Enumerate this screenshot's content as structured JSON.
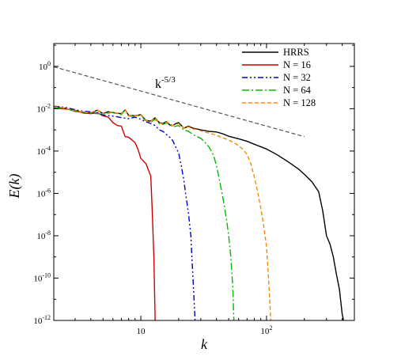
{
  "chart_data": {
    "type": "line",
    "xlabel": "k",
    "ylabel": "E(k)",
    "x_scale": "log",
    "y_scale": "log",
    "xlim": [
      2.03,
      500
    ],
    "ylim": [
      1e-12,
      12
    ],
    "grid": false,
    "legend_position": "top-right",
    "x_ticks": [
      {
        "value": 10,
        "base": "10",
        "exp": ""
      },
      {
        "value": 100,
        "base": "10",
        "exp": "2"
      }
    ],
    "y_ticks": [
      {
        "value": 1,
        "base": "10",
        "exp": "0"
      },
      {
        "value": 0.01,
        "base": "10",
        "exp": "-2"
      },
      {
        "value": 0.0001,
        "base": "10",
        "exp": "-4"
      },
      {
        "value": 1e-06,
        "base": "10",
        "exp": "-6"
      },
      {
        "value": 1e-08,
        "base": "10",
        "exp": "-8"
      },
      {
        "value": 1e-10,
        "base": "10",
        "exp": "-10"
      },
      {
        "value": 1e-12,
        "base": "10",
        "exp": "-12"
      }
    ],
    "reference_line": {
      "label_base": "k",
      "label_exp": "-5/3",
      "color": "#555555",
      "points": [
        [
          2.03,
          0.955
        ],
        [
          200,
          0.00048
        ]
      ]
    },
    "series": [
      {
        "name": "HRRS",
        "color": "#000000",
        "dash": "",
        "points": [
          [
            2.03,
            0.0128
          ],
          [
            2.5,
            0.0105
          ],
          [
            3,
            0.0075
          ],
          [
            3.5,
            0.0068
          ],
          [
            4,
            0.0062
          ],
          [
            4.5,
            0.0085
          ],
          [
            5,
            0.0059
          ],
          [
            5.5,
            0.0072
          ],
          [
            6,
            0.0065
          ],
          [
            7,
            0.0058
          ],
          [
            7.5,
            0.0089
          ],
          [
            8,
            0.0048
          ],
          [
            9,
            0.0047
          ],
          [
            10,
            0.0052
          ],
          [
            11,
            0.0028
          ],
          [
            12,
            0.0026
          ],
          [
            13,
            0.0037
          ],
          [
            14,
            0.0022
          ],
          [
            15,
            0.002
          ],
          [
            16,
            0.0025
          ],
          [
            17,
            0.0017
          ],
          [
            18,
            0.0016
          ],
          [
            19,
            0.002
          ],
          [
            20,
            0.0022
          ],
          [
            22,
            0.0012
          ],
          [
            24,
            0.0015
          ],
          [
            26,
            0.0012
          ],
          [
            28,
            0.0011
          ],
          [
            30,
            0.001
          ],
          [
            35,
            0.00085
          ],
          [
            40,
            0.0008
          ],
          [
            45,
            0.00065
          ],
          [
            50,
            0.0005
          ],
          [
            60,
            0.00038
          ],
          [
            70,
            0.00029
          ],
          [
            80,
            0.00021
          ],
          [
            100,
            0.000125
          ],
          [
            120,
            7e-05
          ],
          [
            150,
            3e-05
          ],
          [
            180,
            1.4e-05
          ],
          [
            200,
            8e-06
          ],
          [
            230,
            3.5e-06
          ],
          [
            260,
            1.2e-06
          ],
          [
            280,
            1.5e-07
          ],
          [
            300,
            1e-08
          ],
          [
            320,
            4e-09
          ],
          [
            340,
            1e-09
          ],
          [
            360,
            1.5e-10
          ],
          [
            380,
            3e-11
          ],
          [
            400,
            2e-12
          ],
          [
            410,
            1e-12
          ]
        ]
      },
      {
        "name": "N = 16",
        "color": "#cc0000",
        "dash": "",
        "points": [
          [
            2.03,
            0.0105
          ],
          [
            2.5,
            0.0098
          ],
          [
            3,
            0.0085
          ],
          [
            3.5,
            0.0062
          ],
          [
            4,
            0.0058
          ],
          [
            4.5,
            0.0065
          ],
          [
            5,
            0.0046
          ],
          [
            5.5,
            0.004
          ],
          [
            6,
            0.0022
          ],
          [
            6.5,
            0.0016
          ],
          [
            7,
            0.0015
          ],
          [
            7.5,
            0.00048
          ],
          [
            8,
            0.00045
          ],
          [
            9,
            0.00025
          ],
          [
            9.5,
            0.00012
          ],
          [
            10,
            4.5e-05
          ],
          [
            11,
            2.5e-05
          ],
          [
            12,
            6.5e-06
          ],
          [
            12.3,
            2e-07
          ],
          [
            12.7,
            1e-09
          ],
          [
            13,
            1e-12
          ]
        ]
      },
      {
        "name": "N = 32",
        "color": "#0000cc",
        "dash": "7,3,2,3,2,3",
        "points": [
          [
            2.03,
            0.0132
          ],
          [
            2.5,
            0.0115
          ],
          [
            3,
            0.009
          ],
          [
            3.5,
            0.0075
          ],
          [
            4,
            0.0072
          ],
          [
            4.5,
            0.0065
          ],
          [
            5,
            0.005
          ],
          [
            6,
            0.0045
          ],
          [
            7,
            0.0038
          ],
          [
            8,
            0.0034
          ],
          [
            9,
            0.004
          ],
          [
            10,
            0.0032
          ],
          [
            11,
            0.0024
          ],
          [
            12,
            0.002
          ],
          [
            13,
            0.0016
          ],
          [
            14,
            0.001
          ],
          [
            15,
            0.00085
          ],
          [
            16,
            0.0006
          ],
          [
            17,
            0.00045
          ],
          [
            18,
            0.0003
          ],
          [
            19,
            0.00015
          ],
          [
            20,
            8e-05
          ],
          [
            21,
            2e-05
          ],
          [
            22,
            4e-06
          ],
          [
            23,
            6e-07
          ],
          [
            24,
            1e-07
          ],
          [
            25,
            1e-08
          ],
          [
            26,
            1e-10
          ],
          [
            27,
            1e-12
          ]
        ]
      },
      {
        "name": "N = 64",
        "color": "#00bb00",
        "dash": "9,3,2,3",
        "points": [
          [
            2.03,
            0.0115
          ],
          [
            2.5,
            0.0102
          ],
          [
            3,
            0.0078
          ],
          [
            3.5,
            0.0068
          ],
          [
            4,
            0.0062
          ],
          [
            5,
            0.0055
          ],
          [
            6,
            0.0068
          ],
          [
            7,
            0.0052
          ],
          [
            7.5,
            0.0085
          ],
          [
            8,
            0.0045
          ],
          [
            9,
            0.0043
          ],
          [
            10,
            0.005
          ],
          [
            11,
            0.0025
          ],
          [
            12,
            0.0023
          ],
          [
            13,
            0.0032
          ],
          [
            14,
            0.002
          ],
          [
            15,
            0.0018
          ],
          [
            16,
            0.0022
          ],
          [
            18,
            0.0014
          ],
          [
            20,
            0.0016
          ],
          [
            22,
            0.001
          ],
          [
            24,
            0.00085
          ],
          [
            26,
            0.0006
          ],
          [
            28,
            0.00048
          ],
          [
            30,
            0.0004
          ],
          [
            32,
            0.00028
          ],
          [
            35,
            0.00015
          ],
          [
            38,
            6e-05
          ],
          [
            40,
            2e-05
          ],
          [
            42,
            5e-06
          ],
          [
            44,
            1.2e-06
          ],
          [
            46,
            3e-07
          ],
          [
            48,
            6e-08
          ],
          [
            50,
            1e-08
          ],
          [
            52,
            1e-09
          ],
          [
            54,
            3e-11
          ],
          [
            55,
            1e-12
          ]
        ]
      },
      {
        "name": "N = 128",
        "color": "#ff8800",
        "dash": "5,3",
        "points": [
          [
            2.03,
            0.0125
          ],
          [
            2.5,
            0.0108
          ],
          [
            3,
            0.008
          ],
          [
            3.5,
            0.007
          ],
          [
            4,
            0.0065
          ],
          [
            4.5,
            0.0088
          ],
          [
            5,
            0.0058
          ],
          [
            6,
            0.007
          ],
          [
            7,
            0.0055
          ],
          [
            7.5,
            0.0088
          ],
          [
            8,
            0.0046
          ],
          [
            9,
            0.0046
          ],
          [
            10,
            0.0052
          ],
          [
            11,
            0.0027
          ],
          [
            12,
            0.0025
          ],
          [
            13,
            0.0036
          ],
          [
            14,
            0.0021
          ],
          [
            15,
            0.0019
          ],
          [
            16,
            0.0024
          ],
          [
            18,
            0.0016
          ],
          [
            20,
            0.002
          ],
          [
            22,
            0.0012
          ],
          [
            24,
            0.0014
          ],
          [
            26,
            0.0011
          ],
          [
            28,
            0.00105
          ],
          [
            30,
            0.0009
          ],
          [
            35,
            0.0007
          ],
          [
            40,
            0.00055
          ],
          [
            45,
            0.00042
          ],
          [
            50,
            0.00033
          ],
          [
            55,
            0.00025
          ],
          [
            60,
            0.00018
          ],
          [
            65,
            0.00012
          ],
          [
            70,
            7e-05
          ],
          [
            75,
            2.5e-05
          ],
          [
            80,
            6e-06
          ],
          [
            85,
            1.2e-06
          ],
          [
            90,
            2e-07
          ],
          [
            95,
            3e-08
          ],
          [
            100,
            3e-09
          ],
          [
            103,
            2e-10
          ],
          [
            106,
            1e-11
          ],
          [
            108,
            1e-12
          ]
        ]
      }
    ]
  }
}
